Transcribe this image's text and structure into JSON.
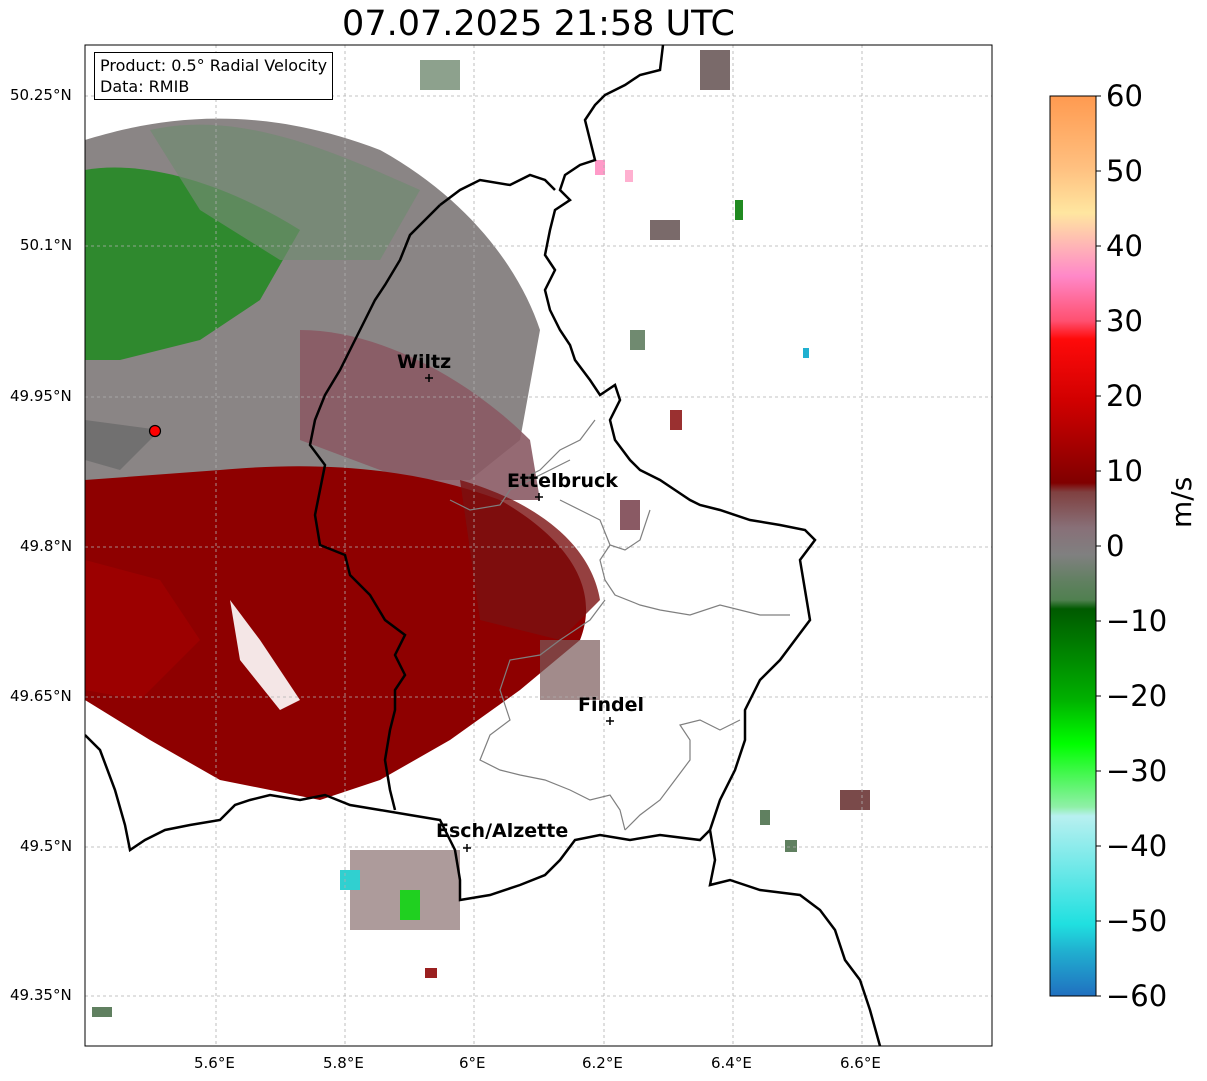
{
  "title": "07.07.2025 21:58 UTC",
  "info_box": {
    "product": "Product: 0.5° Radial Velocity",
    "data": "Data: RMIB"
  },
  "axes": {
    "lon_ticks": [
      "5.6°E",
      "5.8°E",
      "6°E",
      "6.2°E",
      "6.4°E",
      "6.6°E"
    ],
    "lat_ticks": [
      "50.25°N",
      "50.1°N",
      "49.95°N",
      "49.8°N",
      "49.65°N",
      "49.5°N",
      "49.35°N"
    ]
  },
  "colorbar": {
    "label": "m/s",
    "range": [
      -60,
      60
    ],
    "ticks": [
      "60",
      "50",
      "40",
      "30",
      "20",
      "10",
      "0",
      "−10",
      "−20",
      "−30",
      "−40",
      "−50",
      "−60"
    ],
    "colors_top_to_bottom": [
      "#ffa050",
      "#ffc880",
      "#ffe8a0",
      "#ffb0c0",
      "#ff80c0",
      "#ff5070",
      "#ff0a0a",
      "#cc0000",
      "#900000",
      "#702020",
      "#8a6070",
      "#808080",
      "#608060",
      "#006000",
      "#00a000",
      "#00ff00",
      "#80f0a0",
      "#b0f0f0",
      "#30e0e0",
      "#2080c0"
    ]
  },
  "cities": [
    {
      "name": "Wiltz"
    },
    {
      "name": "Ettelbruck"
    },
    {
      "name": "Findel"
    },
    {
      "name": "Esch/Alzette"
    }
  ],
  "radar_site": {
    "color": "#ff0000"
  }
}
